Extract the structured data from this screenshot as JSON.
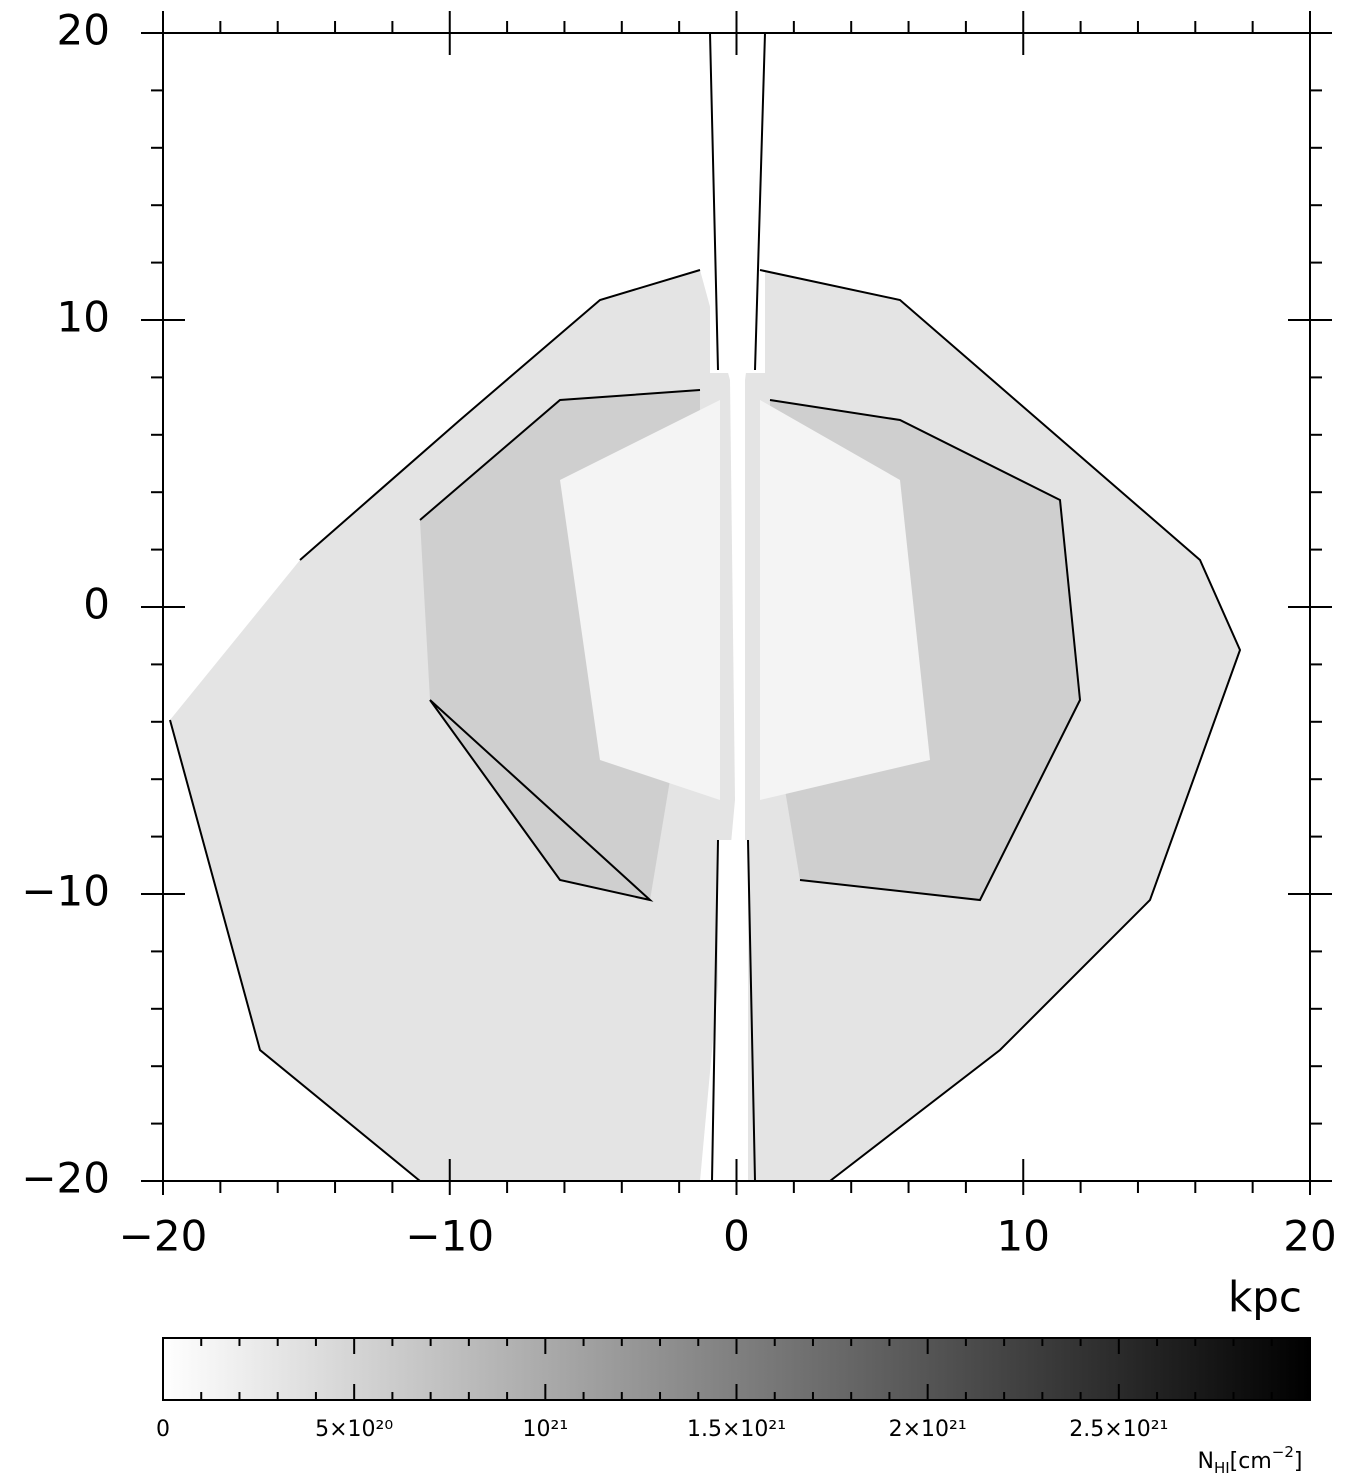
{
  "chart_data": {
    "type": "heatmap",
    "xlabel": "kpc",
    "xlim": [
      -20,
      20
    ],
    "ylim": [
      -20,
      20
    ],
    "xticks": [
      {
        "value": -20,
        "label": "−20"
      },
      {
        "value": -10,
        "label": "−10"
      },
      0,
      10,
      20
    ],
    "yticks": [
      {
        "value": -20,
        "label": "−20"
      },
      {
        "value": -10,
        "label": "−10"
      },
      0,
      10,
      20
    ],
    "xminorticks": [
      -18,
      -16,
      -14,
      -12,
      -8,
      -6,
      -4,
      -2,
      2,
      4,
      6,
      8,
      12,
      14,
      16,
      18
    ],
    "yminorticks": [
      -18,
      -16,
      -14,
      -12,
      -8,
      -6,
      -4,
      -2,
      2,
      4,
      6,
      8,
      12,
      14,
      16,
      18
    ],
    "colormap": [
      "#ffffff",
      "#000000"
    ],
    "clim": [
      0,
      3e+21
    ],
    "cticks": [
      0,
      {
        "value": 5e+20,
        "label": "5×10²⁰"
      },
      {
        "value": 1e+21,
        "label": "10²¹"
      },
      {
        "value": 1.5e+21,
        "label": "1.5×10²¹"
      },
      {
        "value": 2e+21,
        "label": "2×10²¹"
      },
      {
        "value": 2.5e+21,
        "label": "2.5×10²¹"
      }
    ],
    "cminorticks": [
      1e+20,
      2e+20,
      3e+20,
      4e+20,
      6e+20,
      7e+20,
      8e+20,
      9e+20,
      1.1e+21,
      1.2e+21,
      1.3e+21,
      1.4e+21,
      1.6e+21,
      1.7e+21,
      1.8e+21,
      1.9e+21,
      2.1e+21,
      2.2e+21,
      2.3e+21,
      2.4e+21,
      2.6e+21,
      2.7e+21,
      2.8e+21,
      2.9e+21
    ],
    "colorbar_label": [
      "N",
      "HI",
      "[cm",
      "−2",
      "]"
    ]
  }
}
